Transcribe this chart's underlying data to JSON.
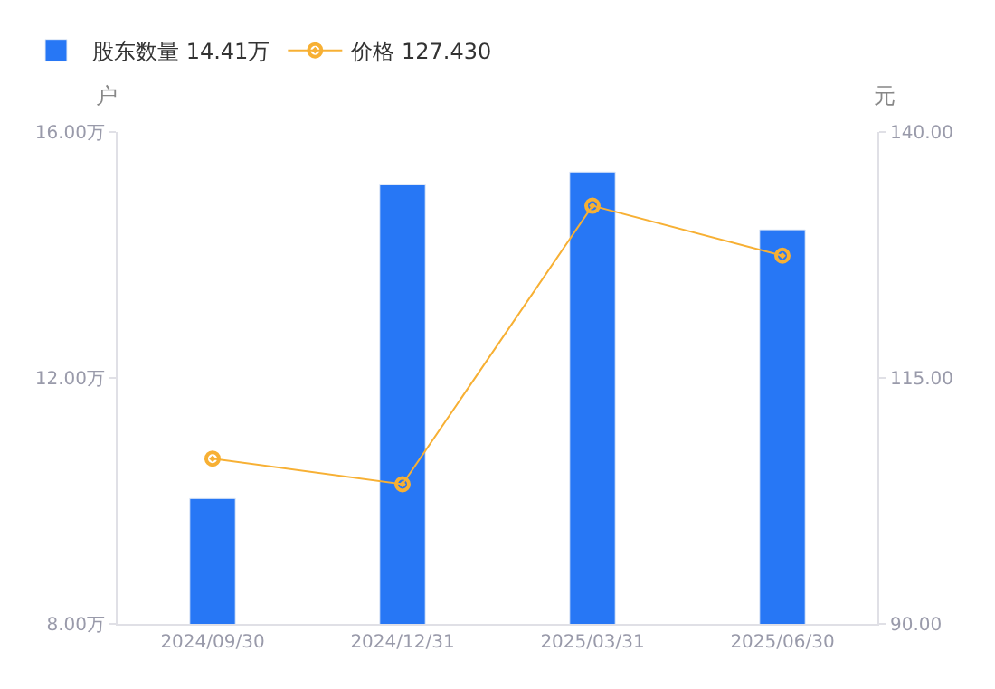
{
  "chart_data": {
    "type": "bar",
    "categories": [
      "2024/09/30",
      "2024/12/31",
      "2025/03/31",
      "2025/06/30"
    ],
    "series": [
      {
        "name": "股东数量 14.41万",
        "color": "#2777f5",
        "values": [
          10.04,
          15.14,
          15.35,
          14.41
        ]
      },
      {
        "name": "价格 127.430",
        "type": "line",
        "axis": "y2",
        "color": "#f7b034",
        "marker": "circle",
        "line_style": "solid",
        "values": [
          106.8,
          104.2,
          132.5,
          127.43
        ]
      }
    ],
    "ylabel": "户",
    "y2label": "元",
    "ylim": [
      8,
      16
    ],
    "yticks": [
      {
        "value": 8,
        "label": "8.00万"
      },
      {
        "value": 12,
        "label": "12.00万"
      },
      {
        "value": 16,
        "label": "16.00万"
      }
    ],
    "y2lim": [
      90,
      140
    ],
    "y2ticks": [
      {
        "value": 90,
        "label": "90.00"
      },
      {
        "value": 115,
        "label": "115.00"
      },
      {
        "value": 140,
        "label": "140.00"
      }
    ],
    "legend": "top left"
  }
}
